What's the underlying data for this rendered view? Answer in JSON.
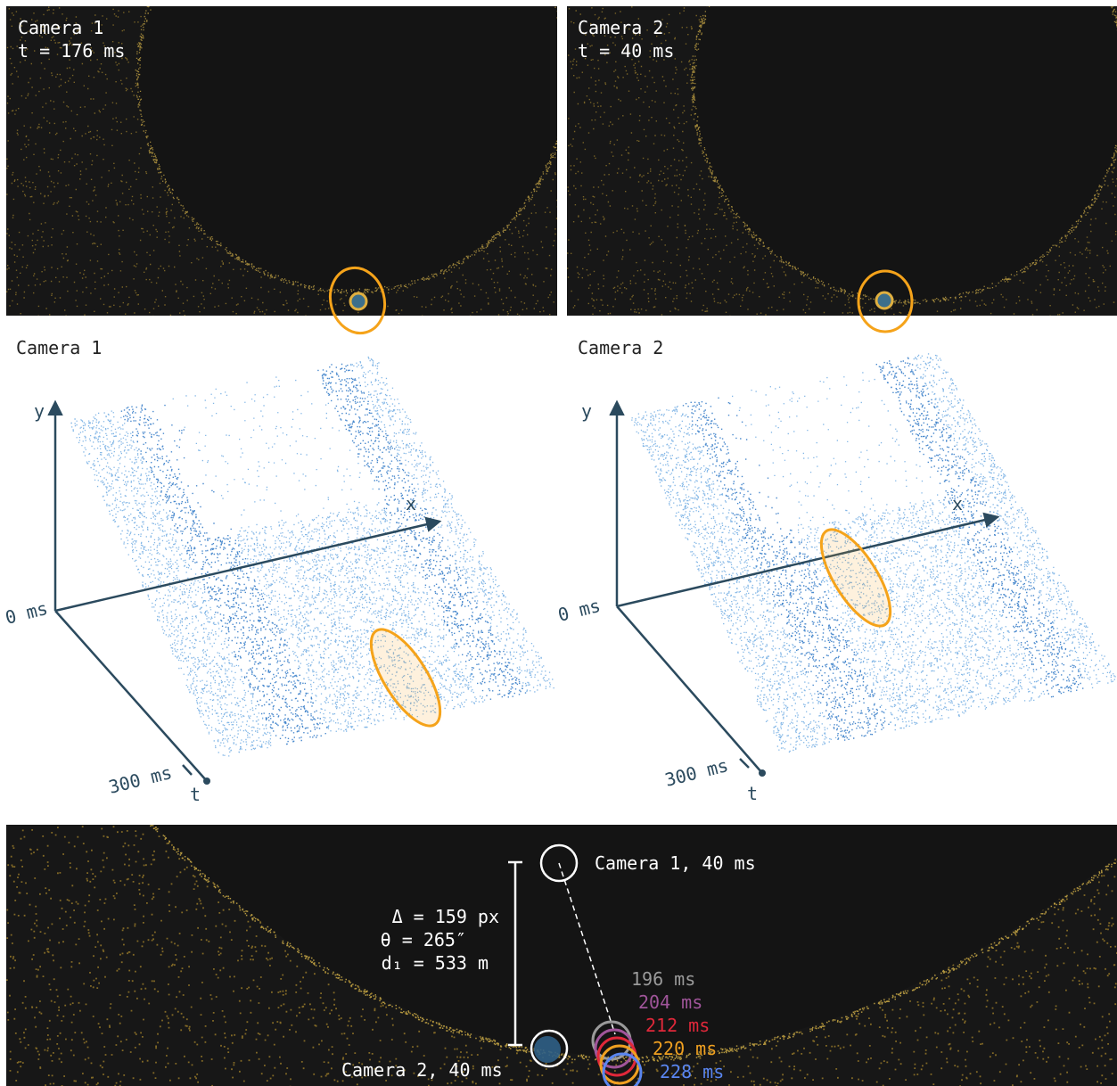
{
  "top_panels": [
    {
      "camera": "Camera 1",
      "time": "t = 176 ms"
    },
    {
      "camera": "Camera 2",
      "time": "t = 40 ms"
    }
  ],
  "cloud_panels": [
    {
      "camera": "Camera 1",
      "axes": {
        "y": "y",
        "x": "x",
        "t": "t",
        "t_start": "0 ms",
        "t_end": "300 ms"
      }
    },
    {
      "camera": "Camera 2",
      "axes": {
        "y": "y",
        "x": "x",
        "t": "t",
        "t_start": "0 ms",
        "t_end": "300 ms"
      }
    }
  ],
  "comparison": {
    "camera1_label": "Camera 1, 40 ms",
    "camera2_label": "Camera 2, 40 ms",
    "stats": [
      "Δ = 159 px",
      "θ = 265″",
      "d₁ = 533 m"
    ],
    "track": [
      {
        "label": "196 ms",
        "color": "#9a9a9a"
      },
      {
        "label": "204 ms",
        "color": "#a0559a"
      },
      {
        "label": "212 ms",
        "color": "#e0283a"
      },
      {
        "label": "220 ms",
        "color": "#f0a020"
      },
      {
        "label": "228 ms",
        "color": "#5a86f0"
      }
    ]
  }
}
